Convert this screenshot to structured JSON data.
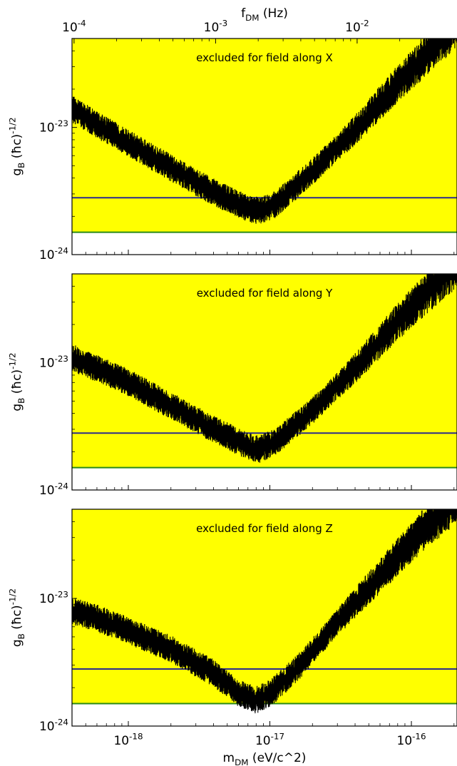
{
  "chart_data": [
    {
      "type": "line",
      "panel": "X",
      "annotation": "excluded for field along X",
      "ylabel": "g_B (ħc)^{-1/2}",
      "top_xlabel": "f_DM (Hz)",
      "top_xticks": [
        0.0001,
        0.001,
        0.01
      ],
      "top_xtick_labels": [
        "10^{-4}",
        "10^{-3}",
        "10^{-2}"
      ],
      "xscale": "log",
      "yscale": "log",
      "xlim": [
        4e-19,
        2.1e-16
      ],
      "ylim": [
        1e-24,
        5e-23
      ],
      "yticks": [
        1e-24,
        1e-23
      ],
      "ytick_labels": [
        "10^{-24}",
        "10^{-23}"
      ],
      "excluded_region_color": "#ffff00",
      "series": [
        {
          "color": "#000000",
          "x": [
            4e-19,
            6e-19,
            1e-18,
            2e-18,
            4e-18,
            7e-18,
            8.5e-18,
            1.1e-17,
            2e-17,
            4e-17,
            8e-17,
            1.5e-16,
            2.1e-16
          ],
          "y": [
            1.4e-23,
            1.05e-23,
            7.5e-24,
            4.8e-24,
            3.1e-24,
            2.3e-24,
            2.2e-24,
            2.5e-24,
            4.5e-24,
            9.5e-24,
            2.2e-23,
            4.5e-23,
            6.5e-23
          ]
        }
      ],
      "hlines": [
        {
          "y": 2.8e-24,
          "color": "#2b2b8c"
        },
        {
          "y": 1.5e-24,
          "color": "#2a8a14"
        }
      ]
    },
    {
      "type": "line",
      "panel": "Y",
      "annotation": "excluded for field along Y",
      "ylabel": "g_B (ħc)^{-1/2}",
      "xscale": "log",
      "yscale": "log",
      "xlim": [
        4e-19,
        2.1e-16
      ],
      "ylim": [
        1e-24,
        5e-23
      ],
      "yticks": [
        1e-24,
        1e-23
      ],
      "ytick_labels": [
        "10^{-24}",
        "10^{-23}"
      ],
      "excluded_region_color": "#ffff00",
      "series": [
        {
          "color": "#000000",
          "x": [
            4e-19,
            6e-19,
            1e-18,
            2e-18,
            4e-18,
            7e-18,
            8.5e-18,
            1.1e-17,
            2e-17,
            4e-17,
            8e-17,
            1.5e-16,
            2.1e-16
          ],
          "y": [
            1.1e-23,
            9e-24,
            7e-24,
            4.6e-24,
            3e-24,
            2.2e-24,
            2.1e-24,
            2.4e-24,
            4.2e-24,
            9e-24,
            2.1e-23,
            4.2e-23,
            6e-23
          ]
        }
      ],
      "hlines": [
        {
          "y": 2.8e-24,
          "color": "#2b2b8c"
        },
        {
          "y": 1.5e-24,
          "color": "#2a8a14"
        }
      ]
    },
    {
      "type": "line",
      "panel": "Z",
      "annotation": "excluded for field along Z",
      "ylabel": "g_B (ħc)^{-1/2}",
      "xlabel": "m_DM (eV/c^2)",
      "xscale": "log",
      "yscale": "log",
      "xlim": [
        4e-19,
        2.1e-16
      ],
      "ylim": [
        1e-24,
        5e-23
      ],
      "xticks": [
        1e-18,
        1e-17,
        1e-16
      ],
      "xtick_labels": [
        "10^{-18}",
        "10^{-17}",
        "10^{-16}"
      ],
      "yticks": [
        1e-24,
        1e-23
      ],
      "ytick_labels": [
        "10^{-24}",
        "10^{-23}"
      ],
      "excluded_region_color": "#ffff00",
      "series": [
        {
          "color": "#000000",
          "x": [
            4e-19,
            6e-19,
            1e-18,
            2e-18,
            4e-18,
            6e-18,
            8e-18,
            1e-17,
            1.6e-17,
            3e-17,
            6e-17,
            1.2e-16,
            2.1e-16
          ],
          "y": [
            8e-24,
            7e-24,
            5.6e-24,
            4e-24,
            2.6e-24,
            1.8e-24,
            1.6e-24,
            1.8e-24,
            2.9e-24,
            6.5e-24,
            1.5e-23,
            3.4e-23,
            6e-23
          ]
        }
      ],
      "hlines": [
        {
          "y": 2.8e-24,
          "color": "#2b2b8c"
        },
        {
          "y": 1.5e-24,
          "color": "#2a8a14"
        }
      ]
    }
  ]
}
